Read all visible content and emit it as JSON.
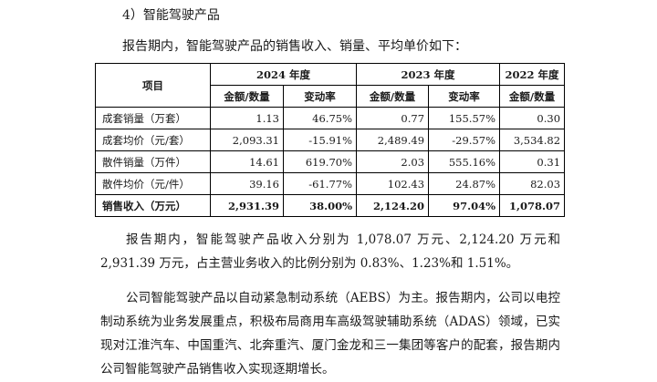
{
  "section_title": "4）智能驾驶产品",
  "intro": "报告期内，智能驾驶产品的销售收入、销量、平均单价如下：",
  "table": {
    "header_item": "项目",
    "years": [
      "2024 年度",
      "2023 年度",
      "2022 年度"
    ],
    "sub_headers": [
      "金额/数量",
      "变动率",
      "金额/数量",
      "变动率",
      "金额/数量"
    ],
    "rows": [
      {
        "label": "成套销量（万套）",
        "cells": [
          "1.13",
          "46.75%",
          "0.77",
          "155.57%",
          "0.30"
        ]
      },
      {
        "label": "成套均价（元/套）",
        "cells": [
          "2,093.31",
          "-15.91%",
          "2,489.49",
          "-29.57%",
          "3,534.82"
        ]
      },
      {
        "label": "散件销量（万件）",
        "cells": [
          "14.61",
          "619.70%",
          "2.03",
          "555.16%",
          "0.31"
        ]
      },
      {
        "label": "散件均价（元/件）",
        "cells": [
          "39.16",
          "-61.77%",
          "102.43",
          "24.87%",
          "82.03"
        ]
      },
      {
        "label": "销售收入（万元）",
        "cells": [
          "2,931.39",
          "38.00%",
          "2,124.20",
          "97.04%",
          "1,078.07"
        ],
        "total": true
      }
    ]
  },
  "paragraph1": "报告期内，智能驾驶产品收入分别为 1,078.07 万元、2,124.20 万元和 2,931.39 万元，占主营业务收入的比例分别为 0.83%、1.23%和 1.51%。",
  "paragraph2": "公司智能驾驶产品以自动紧急制动系统（AEBS）为主。报告期内，公司以电控制动系统为业务发展重点，积极布局商用车高级驾驶辅助系统（ADAS）领域，已实现对江淮汽车、中国重汽、北奔重汽、厦门金龙和三一集团等客户的配套，报告期内公司智能驾驶产品销售收入实现逐期增长。"
}
